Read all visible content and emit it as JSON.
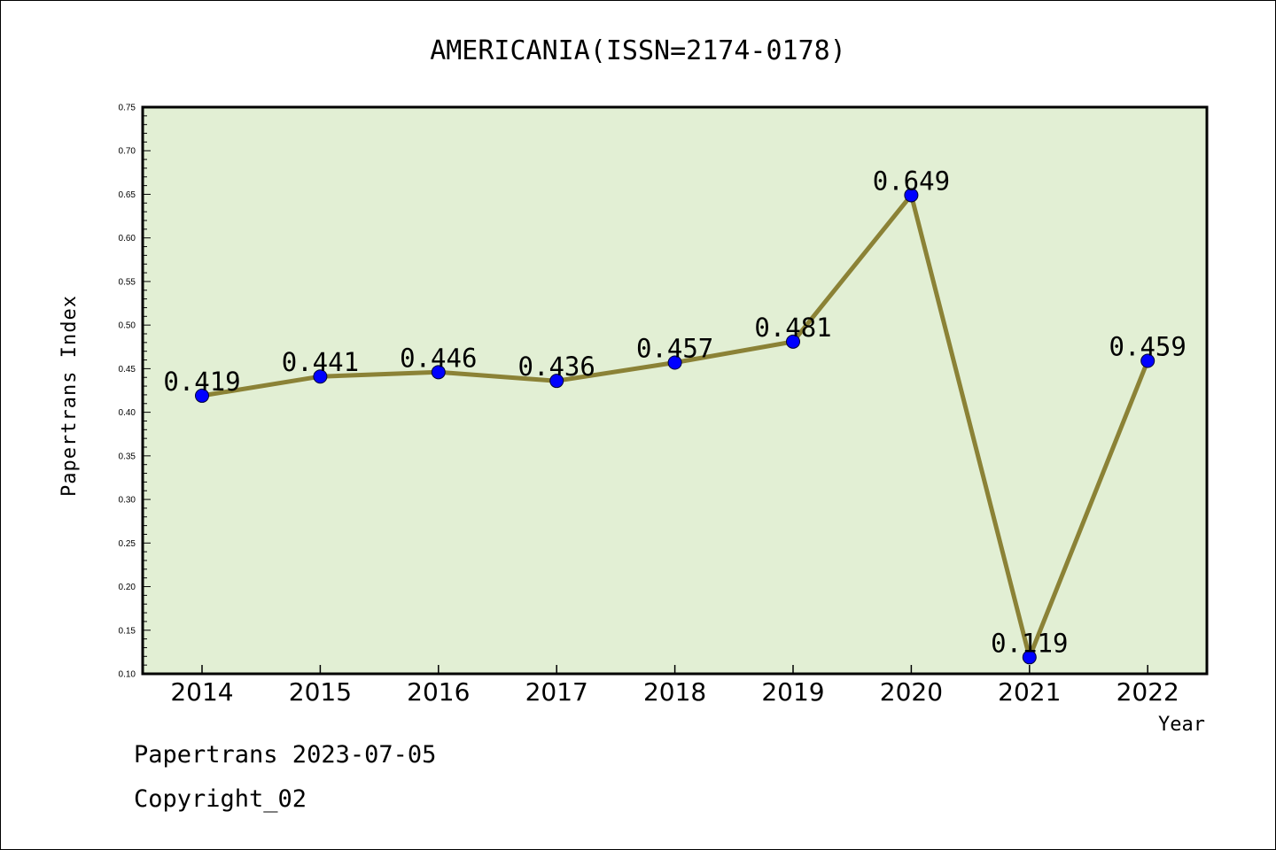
{
  "chart_data": {
    "type": "line",
    "title": "AMERICANIA(ISSN=2174-0178)",
    "xlabel": "Year",
    "ylabel": "Papertrans Index",
    "categories": [
      "2014",
      "2015",
      "2016",
      "2017",
      "2018",
      "2019",
      "2020",
      "2021",
      "2022"
    ],
    "values": [
      0.419,
      0.441,
      0.446,
      0.436,
      0.457,
      0.481,
      0.649,
      0.119,
      0.459
    ],
    "data_labels": [
      "0.419",
      "0.441",
      "0.446",
      "0.436",
      "0.457",
      "0.481",
      "0.649",
      "0.119",
      "0.459"
    ],
    "yticks": [
      "0.10",
      "0.15",
      "0.20",
      "0.25",
      "0.30",
      "0.35",
      "0.40",
      "0.45",
      "0.50",
      "0.55",
      "0.60",
      "0.65",
      "0.70",
      "0.75"
    ],
    "ylim": [
      0.1,
      0.75
    ],
    "grid": false,
    "legend": "none",
    "colors": {
      "plot_background": "#e2efd4",
      "line": "#8b8236",
      "marker": "#0000ff"
    }
  },
  "footer": {
    "date_line": "Papertrans 2023-07-05",
    "copyright_line": "Copyright_02"
  }
}
